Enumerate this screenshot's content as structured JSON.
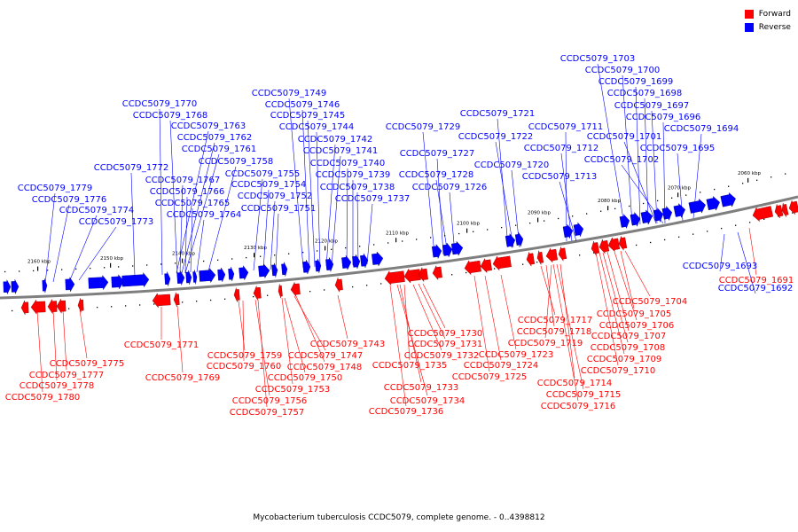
{
  "legend": {
    "forward_label": "Forward",
    "reverse_label": "Reverse",
    "forward_color": "#ff0000",
    "reverse_color": "#0000ff"
  },
  "caption": "Mycobacterium tuberculosis CCDC5079, complete genome. - 0..4398812",
  "colors": {
    "backbone": "#7f7f7f",
    "forward": "#ff0000",
    "reverse": "#0000ff"
  },
  "scale_labels": [
    "2160 kbp",
    "2150 kbp",
    "2140 kbp",
    "2130 kbp",
    "2120 kbp",
    "2110 kbp",
    "2100 kbp",
    "2090 kbp",
    "2080 kbp",
    "2070 kbp",
    "2060 kbp"
  ],
  "reverse_genes": [
    "CCDC5079_1779",
    "CCDC5079_1776",
    "CCDC5079_1774",
    "CCDC5079_1773",
    "CCDC5079_1772",
    "CCDC5079_1770",
    "CCDC5079_1768",
    "CCDC5079_1767",
    "CCDC5079_1766",
    "CCDC5079_1765",
    "CCDC5079_1764",
    "CCDC5079_1763",
    "CCDC5079_1762",
    "CCDC5079_1761",
    "CCDC5079_1758",
    "CCDC5079_1755",
    "CCDC5079_1754",
    "CCDC5079_1752",
    "CCDC5079_1751",
    "CCDC5079_1749",
    "CCDC5079_1746",
    "CCDC5079_1745",
    "CCDC5079_1744",
    "CCDC5079_1742",
    "CCDC5079_1741",
    "CCDC5079_1740",
    "CCDC5079_1739",
    "CCDC5079_1738",
    "CCDC5079_1737",
    "CCDC5079_1729",
    "CCDC5079_1727",
    "CCDC5079_1728",
    "CCDC5079_1726",
    "CCDC5079_1721",
    "CCDC5079_1722",
    "CCDC5079_1720",
    "CCDC5079_1711",
    "CCDC5079_1712",
    "CCDC5079_1713",
    "CCDC5079_1703",
    "CCDC5079_1700",
    "CCDC5079_1699",
    "CCDC5079_1698",
    "CCDC5079_1697",
    "CCDC5079_1696",
    "CCDC5079_1694",
    "CCDC5079_1701",
    "CCDC5079_1702",
    "CCDC5079_1695",
    "CCDC5079_1693",
    "CCDC5079_1692"
  ],
  "forward_genes": [
    "CCDC5079_1775",
    "CCDC5079_1777",
    "CCDC5079_1778",
    "CCDC5079_1780",
    "CCDC5079_1771",
    "CCDC5079_1769",
    "CCDC5079_1759",
    "CCDC5079_1760",
    "CCDC5079_1756",
    "CCDC5079_1757",
    "CCDC5079_1753",
    "CCDC5079_1750",
    "CCDC5079_1747",
    "CCDC5079_1748",
    "CCDC5079_1743",
    "CCDC5079_1730",
    "CCDC5079_1731",
    "CCDC5079_1732",
    "CCDC5079_1735",
    "CCDC5079_1733",
    "CCDC5079_1734",
    "CCDC5079_1736",
    "CCDC5079_1724",
    "CCDC5079_1725",
    "CCDC5079_1723",
    "CCDC5079_1717",
    "CCDC5079_1718",
    "CCDC5079_1719",
    "CCDC5079_1714",
    "CCDC5079_1715",
    "CCDC5079_1716",
    "CCDC5079_1704",
    "CCDC5079_1705",
    "CCDC5079_1706",
    "CCDC5079_1707",
    "CCDC5079_1708",
    "CCDC5079_1709",
    "CCDC5079_1710",
    "CCDC5079_1691"
  ]
}
